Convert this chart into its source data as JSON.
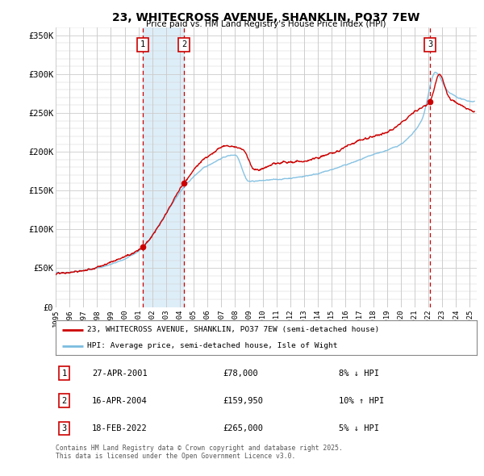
{
  "title": "23, WHITECROSS AVENUE, SHANKLIN, PO37 7EW",
  "subtitle": "Price paid vs. HM Land Registry's House Price Index (HPI)",
  "legend_line1": "23, WHITECROSS AVENUE, SHANKLIN, PO37 7EW (semi-detached house)",
  "legend_line2": "HPI: Average price, semi-detached house, Isle of Wight",
  "footer": "Contains HM Land Registry data © Crown copyright and database right 2025.\nThis data is licensed under the Open Government Licence v3.0.",
  "sale_color": "#cc0000",
  "hpi_color": "#7bbde0",
  "sale_dot_color": "#cc0000",
  "vline_color": "#cc0000",
  "vshade_color": "#deeef8",
  "yticks": [
    0,
    50000,
    100000,
    150000,
    200000,
    250000,
    300000,
    350000
  ],
  "ytick_labels": [
    "£0",
    "£50K",
    "£100K",
    "£150K",
    "£200K",
    "£250K",
    "£300K",
    "£350K"
  ],
  "xmin": 1995.0,
  "xmax": 2025.5,
  "ymin": 0,
  "ymax": 360000,
  "sales": [
    {
      "label": "1",
      "date_num": 2001.32,
      "price": 78000,
      "date_str": "27-APR-2001",
      "price_str": "£78,000",
      "pct": "8%",
      "dir": "↓",
      "note": "HPI"
    },
    {
      "label": "2",
      "date_num": 2004.29,
      "price": 159950,
      "date_str": "16-APR-2004",
      "price_str": "£159,950",
      "pct": "10%",
      "dir": "↑",
      "note": "HPI"
    },
    {
      "label": "3",
      "date_num": 2022.12,
      "price": 265000,
      "date_str": "18-FEB-2022",
      "price_str": "£265,000",
      "pct": "5%",
      "dir": "↓",
      "note": "HPI"
    }
  ],
  "shade_pairs": [
    [
      2001.32,
      2004.29
    ]
  ],
  "background_color": "#ffffff",
  "grid_color": "#cccccc",
  "hpi_knots_x": [
    1995,
    1997,
    1999,
    2001,
    2003,
    2004,
    2006,
    2008,
    2009,
    2010,
    2012,
    2014,
    2016,
    2018,
    2020,
    2021.5,
    2022.5,
    2023.5,
    2025.25
  ],
  "hpi_knots_y": [
    44000,
    47000,
    55000,
    72000,
    120000,
    148000,
    182000,
    196000,
    162000,
    163000,
    166000,
    172000,
    183000,
    196000,
    210000,
    240000,
    302000,
    276000,
    265000
  ],
  "sale_knots_x": [
    1995,
    1997,
    1999,
    2001.32,
    2002.5,
    2004.29,
    2006,
    2007.5,
    2008.5,
    2009.5,
    2011,
    2013,
    2015,
    2017,
    2019,
    2021,
    2022.12,
    2022.8,
    2023.5,
    2024.5,
    2025.25
  ],
  "sale_knots_y": [
    43000,
    47000,
    58000,
    78000,
    105000,
    159950,
    194000,
    208000,
    204000,
    176000,
    185000,
    188000,
    198000,
    215000,
    225000,
    252000,
    265000,
    300000,
    270000,
    258000,
    252000
  ]
}
